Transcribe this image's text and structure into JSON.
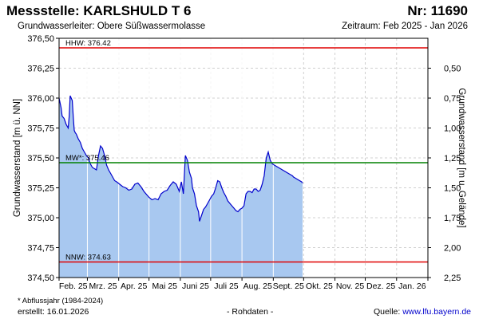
{
  "header": {
    "title": "Messstelle: KARLSHULD T 6",
    "number": "Nr: 11690",
    "aquifer": "Grundwasserleiter:  Obere Süßwassermolasse",
    "period": "Zeitraum: Feb 2025 - Jan 2026"
  },
  "footer": {
    "footnote": "* Abflussjahr (1984-2024)",
    "created": "erstellt:  16.01.2026",
    "rawdata": "- Rohdaten -",
    "source_label": "Quelle: ",
    "source_url": "www.lfu.bayern.de"
  },
  "chart_data": {
    "type": "area",
    "ylabel": "Grundwasserstand [m ü. NN]",
    "ylabel_right": "Grundwasserstand [m u. Gelände]",
    "ylim": [
      374.5,
      376.5
    ],
    "yticks": [
      "376,50",
      "376,25",
      "376,00",
      "375,75",
      "375,50",
      "375,25",
      "375,00",
      "374,75",
      "374,50"
    ],
    "yticks_right": [
      "0,50",
      "0,75",
      "1,00",
      "1,25",
      "1,50",
      "1,75",
      "2,00",
      "2,25"
    ],
    "xlim": [
      "2025-02-01",
      "2026-01-31"
    ],
    "xticks": [
      "Feb. 25",
      "Mrz. 25",
      "Apr. 25",
      "Mai 25",
      "Juni 25",
      "Juli 25",
      "Aug. 25",
      "Sept. 25",
      "Okt. 25",
      "Nov. 25",
      "Dez. 25",
      "Jan. 26"
    ],
    "grid": true,
    "fill_color": "#a8c8f0",
    "line_color": "#0000cc",
    "reference_lines": [
      {
        "label": "HHW: 376.42",
        "value": 376.42,
        "color": "#e00000"
      },
      {
        "label": "MW*: 375.46",
        "value": 375.46,
        "color": "#008000"
      },
      {
        "label": "NNW: 374.63",
        "value": 374.63,
        "color": "#e00000"
      }
    ],
    "series": [
      {
        "x": [
          "2025-02-01",
          "2025-02-03",
          "2025-02-04",
          "2025-02-06",
          "2025-02-08",
          "2025-02-10",
          "2025-02-11",
          "2025-02-12",
          "2025-02-14",
          "2025-02-15",
          "2025-02-16",
          "2025-02-17",
          "2025-02-18",
          "2025-02-20",
          "2025-02-22",
          "2025-02-24",
          "2025-02-26",
          "2025-02-28",
          "2025-03-02",
          "2025-03-04",
          "2025-03-06",
          "2025-03-08",
          "2025-03-10",
          "2025-03-12",
          "2025-03-14",
          "2025-03-16",
          "2025-03-18",
          "2025-03-20",
          "2025-03-22",
          "2025-03-24",
          "2025-03-26",
          "2025-03-28",
          "2025-03-30",
          "2025-04-02",
          "2025-04-05",
          "2025-04-08",
          "2025-04-11",
          "2025-04-14",
          "2025-04-17",
          "2025-04-20",
          "2025-04-23",
          "2025-04-26",
          "2025-04-29",
          "2025-05-01",
          "2025-05-04",
          "2025-05-07",
          "2025-05-10",
          "2025-05-13",
          "2025-05-16",
          "2025-05-19",
          "2025-05-22",
          "2025-05-25",
          "2025-05-28",
          "2025-05-31",
          "2025-06-02",
          "2025-06-04",
          "2025-06-06",
          "2025-06-08",
          "2025-06-10",
          "2025-06-12",
          "2025-06-13",
          "2025-06-15",
          "2025-06-17",
          "2025-06-19",
          "2025-06-20",
          "2025-06-22",
          "2025-06-24",
          "2025-06-26",
          "2025-06-28",
          "2025-06-30",
          "2025-07-02",
          "2025-07-04",
          "2025-07-06",
          "2025-07-08",
          "2025-07-10",
          "2025-07-12",
          "2025-07-14",
          "2025-07-16",
          "2025-07-18",
          "2025-07-20",
          "2025-07-22",
          "2025-07-24",
          "2025-07-26",
          "2025-07-28",
          "2025-07-30",
          "2025-08-01",
          "2025-08-03",
          "2025-08-05",
          "2025-08-07",
          "2025-08-09",
          "2025-08-11",
          "2025-08-13",
          "2025-08-15",
          "2025-08-17",
          "2025-08-19",
          "2025-08-21",
          "2025-08-23",
          "2025-08-25",
          "2025-08-27",
          "2025-08-29",
          "2025-08-31",
          "2025-09-02",
          "2025-09-04",
          "2025-09-06",
          "2025-09-08",
          "2025-09-10",
          "2025-09-12",
          "2025-09-14",
          "2025-09-16",
          "2025-09-18",
          "2025-09-20",
          "2025-09-21",
          "2025-09-23",
          "2025-09-25",
          "2025-09-27",
          "2025-09-29",
          "2025-09-30"
        ],
        "y": [
          376.0,
          375.92,
          375.85,
          375.83,
          375.78,
          375.75,
          375.85,
          376.02,
          375.98,
          375.85,
          375.73,
          375.71,
          375.7,
          375.66,
          375.63,
          375.58,
          375.55,
          375.52,
          375.5,
          375.45,
          375.42,
          375.41,
          375.4,
          375.52,
          375.6,
          375.58,
          375.52,
          375.44,
          375.4,
          375.37,
          375.34,
          375.31,
          375.3,
          375.28,
          375.26,
          375.25,
          375.23,
          375.24,
          375.28,
          375.29,
          375.26,
          375.22,
          375.19,
          375.17,
          375.15,
          375.16,
          375.15,
          375.2,
          375.22,
          375.23,
          375.27,
          375.3,
          375.28,
          375.22,
          375.3,
          375.2,
          375.52,
          375.48,
          375.38,
          375.33,
          375.25,
          375.2,
          375.1,
          375.05,
          374.97,
          375.02,
          375.07,
          375.09,
          375.12,
          375.15,
          375.18,
          375.2,
          375.25,
          375.31,
          375.3,
          375.25,
          375.21,
          375.18,
          375.14,
          375.12,
          375.1,
          375.08,
          375.06,
          375.05,
          375.07,
          375.08,
          375.1,
          375.2,
          375.22,
          375.22,
          375.21,
          375.24,
          375.24,
          375.22,
          375.23,
          375.28,
          375.35,
          375.5,
          375.55,
          375.48,
          375.45,
          375.44,
          375.43,
          375.42,
          375.41,
          375.4,
          375.39,
          375.38,
          375.37,
          375.36,
          375.35,
          375.34,
          375.33,
          375.32,
          375.31,
          375.3,
          375.29
        ]
      }
    ]
  }
}
